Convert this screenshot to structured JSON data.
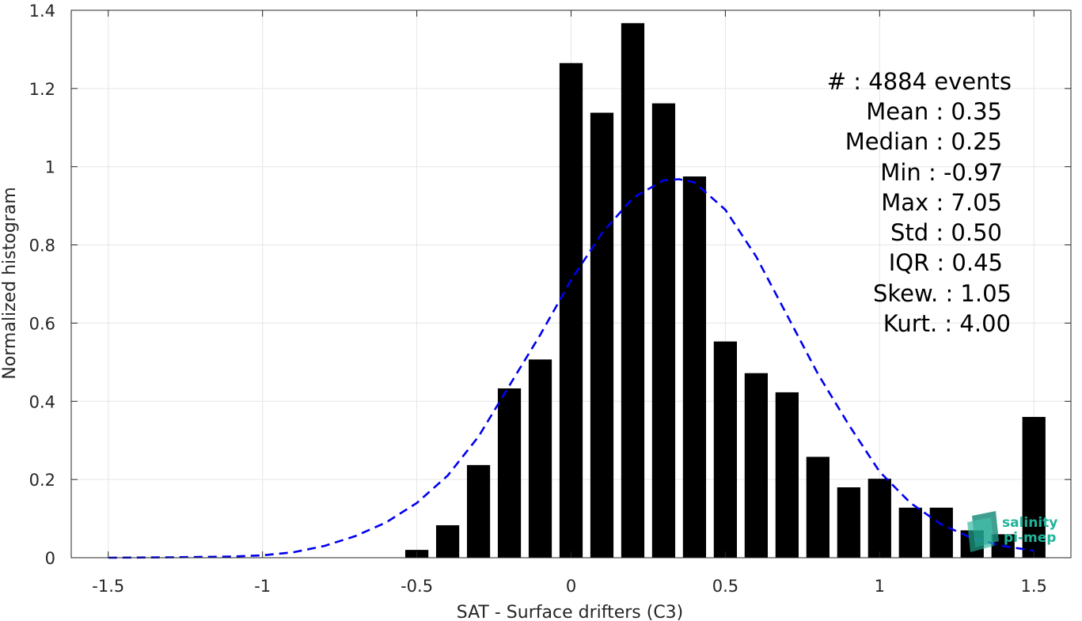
{
  "chart_data": {
    "type": "bar",
    "xlabel": "SAT - Surface drifters (C3)",
    "ylabel": "Normalized histogram",
    "xlim": [
      -1.62,
      1.62
    ],
    "ylim": [
      0,
      1.4
    ],
    "xticks": [
      -1.5,
      -1,
      -0.5,
      0,
      0.5,
      1,
      1.5
    ],
    "xtick_labels": [
      "-1.5",
      "-1",
      "-0.5",
      "0",
      "0.5",
      "1",
      "1.5"
    ],
    "yticks": [
      0,
      0.2,
      0.4,
      0.6,
      0.8,
      1,
      1.2,
      1.4
    ],
    "ytick_labels": [
      "0",
      "0.2",
      "0.4",
      "0.6",
      "0.8",
      "1",
      "1.2",
      "1.4"
    ],
    "grid": true,
    "bar_width": 0.075,
    "bar_color": "#000000",
    "bars": {
      "x": [
        -0.5,
        -0.4,
        -0.3,
        -0.2,
        -0.1,
        0.0,
        0.1,
        0.2,
        0.3,
        0.4,
        0.5,
        0.6,
        0.7,
        0.8,
        0.9,
        1.0,
        1.1,
        1.2,
        1.3,
        1.4,
        1.5
      ],
      "values": [
        0.02,
        0.083,
        0.237,
        0.433,
        0.507,
        1.265,
        1.138,
        1.367,
        1.162,
        0.975,
        0.553,
        0.472,
        0.423,
        0.258,
        0.18,
        0.202,
        0.128,
        0.128,
        0.07,
        0.06,
        0.36
      ]
    },
    "fit_curve": {
      "style": "dashed",
      "color": "#0000ee",
      "x": [
        -1.5,
        -1.3,
        -1.1,
        -1.0,
        -0.9,
        -0.8,
        -0.7,
        -0.6,
        -0.5,
        -0.4,
        -0.3,
        -0.2,
        -0.1,
        0.0,
        0.1,
        0.2,
        0.3,
        0.35,
        0.4,
        0.5,
        0.6,
        0.7,
        0.8,
        0.9,
        1.0,
        1.1,
        1.2,
        1.3,
        1.4,
        1.5
      ],
      "values": [
        0.0,
        0.001,
        0.003,
        0.006,
        0.014,
        0.03,
        0.055,
        0.09,
        0.14,
        0.21,
        0.31,
        0.44,
        0.57,
        0.71,
        0.83,
        0.92,
        0.965,
        0.968,
        0.96,
        0.89,
        0.77,
        0.62,
        0.47,
        0.34,
        0.22,
        0.14,
        0.085,
        0.05,
        0.03,
        0.018
      ]
    }
  },
  "stats": [
    {
      "label": "#  : 4884 events"
    },
    {
      "label": "Mean : 0.35"
    },
    {
      "label": "Median : 0.25"
    },
    {
      "label": "Min : -0.97"
    },
    {
      "label": "Max : 7.05"
    },
    {
      "label": "Std : 0.50"
    },
    {
      "label": "IQR : 0.45"
    },
    {
      "label": "Skew. : 1.05"
    },
    {
      "label": "Kurt. : 4.00"
    }
  ],
  "logo": {
    "line1": "salinity",
    "line2": "pi-mep",
    "color": "#20b39a"
  }
}
